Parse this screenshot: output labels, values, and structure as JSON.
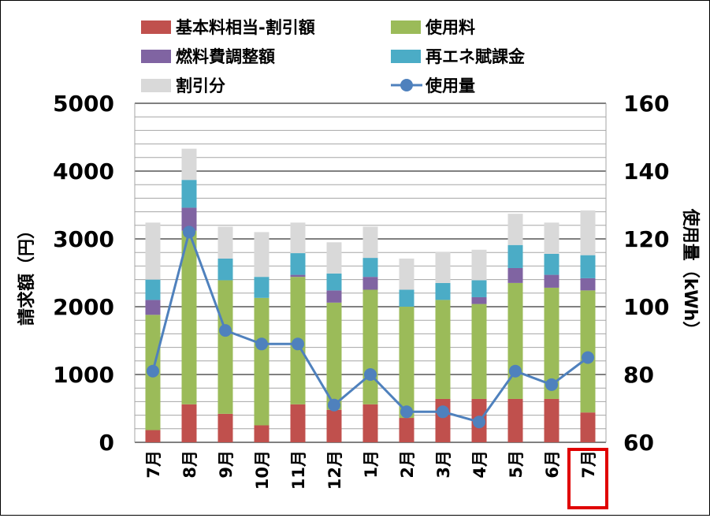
{
  "chart_data": {
    "type": "bar",
    "stacked": true,
    "categories": [
      "7月",
      "8月",
      "9月",
      "10月",
      "11月",
      "12月",
      "1月",
      "2月",
      "3月",
      "4月",
      "5月",
      "6月",
      "7月"
    ],
    "highlighted_category_index": 12,
    "highlight_color": "#e00000",
    "series": [
      {
        "name": "基本料相当-割引額",
        "color": "#c0504d",
        "values": [
          180,
          560,
          420,
          250,
          560,
          480,
          560,
          360,
          640,
          640,
          640,
          640,
          440
        ]
      },
      {
        "name": "使用料",
        "color": "#9bbb59",
        "values": [
          1700,
          2560,
          1970,
          1880,
          1880,
          1580,
          1690,
          1640,
          1460,
          1400,
          1710,
          1640,
          1800
        ]
      },
      {
        "name": "燃料費調整額",
        "color": "#8064a2",
        "values": [
          220,
          340,
          0,
          0,
          30,
          180,
          190,
          0,
          0,
          100,
          220,
          190,
          180
        ]
      },
      {
        "name": "再エネ賦課金",
        "color": "#4bacc6",
        "values": [
          300,
          410,
          320,
          310,
          320,
          250,
          280,
          250,
          250,
          250,
          340,
          310,
          340
        ]
      },
      {
        "name": "割引分",
        "color": "#d9d9d9",
        "values": [
          840,
          460,
          470,
          660,
          450,
          460,
          460,
          460,
          460,
          450,
          460,
          460,
          660
        ]
      }
    ],
    "line_series": {
      "name": "使用量",
      "color": "#4f81bd",
      "axis": "right",
      "values": [
        81,
        122,
        93,
        89,
        89,
        71,
        80,
        69,
        69,
        66,
        81,
        77,
        85
      ]
    },
    "ylabel": "請求額（円）",
    "y2label": "使用量（kWh）",
    "ylim": [
      0,
      5000
    ],
    "y2lim": [
      60,
      160
    ],
    "yticks": [
      "0",
      "1000",
      "2000",
      "3000",
      "4000",
      "5000"
    ],
    "y2ticks": [
      "60",
      "80",
      "100",
      "120",
      "140",
      "160"
    ],
    "grid": true,
    "legend_position": "top"
  }
}
